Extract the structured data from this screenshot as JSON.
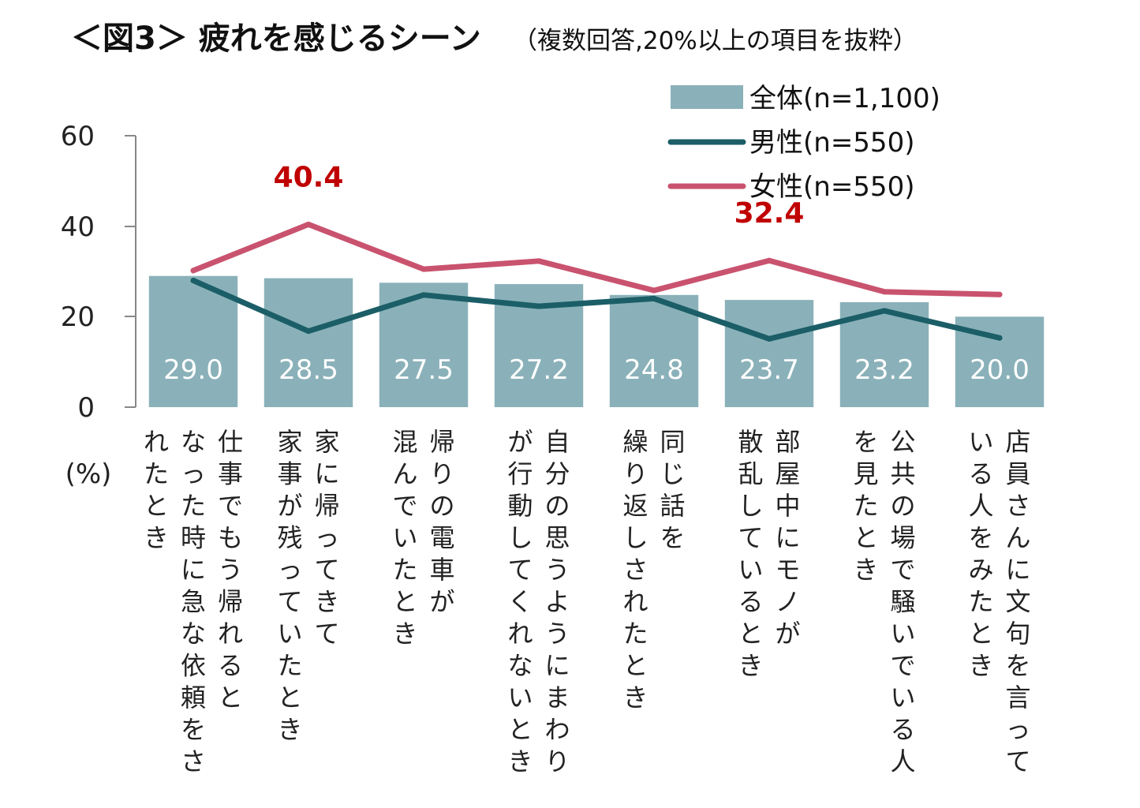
{
  "chart_data": {
    "type": "bar",
    "title": "＜図3＞ 疲れを感じるシーン",
    "subtitle": "（複数回答,20%以上の項目を抜粋）",
    "ylabel": "(%)",
    "ylim": [
      0,
      60
    ],
    "yticks": [
      "0",
      "20",
      "40",
      "60"
    ],
    "categories": [
      "仕事でもう帰れるとなった時に急な依頼をされたとき",
      "家に帰ってきて家事が残っていたとき",
      "帰りの電車が混んでいたとき",
      "自分の思うようにまわりが行動してくれないとき",
      "同じ話を繰り返しされたとき",
      "部屋中にモノが散乱しているとき",
      "公共の場で騒いでいる人を見たとき",
      "店員さんに文句を言っている人をみたとき"
    ],
    "category_lines": [
      [
        "仕事でもう帰れると",
        "なった時に急な依頼をさ",
        "れたとき"
      ],
      [
        "家に帰ってきて",
        "家事が残っていたとき"
      ],
      [
        "帰りの電車が",
        "混んでいたとき"
      ],
      [
        "自分の思うようにまわり",
        "が行動してくれないとき"
      ],
      [
        "同じ話を",
        "繰り返しされたとき"
      ],
      [
        "部屋中にモノが",
        "散乱しているとき"
      ],
      [
        "公共の場で騒いでいる人",
        "を見たとき"
      ],
      [
        "店員さんに文句を言って",
        "いる人をみたとき"
      ]
    ],
    "series": [
      {
        "name": "全体(n=1,100)",
        "kind": "bar",
        "color": "#8ab1b9",
        "values": [
          29.0,
          28.5,
          27.5,
          27.2,
          24.8,
          23.7,
          23.2,
          20.0
        ],
        "labels": [
          "29.0",
          "28.5",
          "27.5",
          "27.2",
          "24.8",
          "23.7",
          "23.2",
          "20.0"
        ]
      },
      {
        "name": "男性(n=550)",
        "kind": "line",
        "color": "#1b5e67",
        "values": [
          28.0,
          16.8,
          24.8,
          22.3,
          24.0,
          15.1,
          21.3,
          15.3
        ]
      },
      {
        "name": "女性(n=550)",
        "kind": "line",
        "color": "#c9536f",
        "values": [
          30.2,
          40.4,
          30.5,
          32.3,
          25.8,
          32.4,
          25.5,
          24.9
        ]
      }
    ],
    "annotations": [
      {
        "series": "女性(n=550)",
        "index": 1,
        "text": "40.4",
        "color": "#c00000"
      },
      {
        "series": "女性(n=550)",
        "index": 5,
        "text": "32.4",
        "color": "#c00000"
      }
    ],
    "legend_position": "top-right",
    "grid": false
  }
}
